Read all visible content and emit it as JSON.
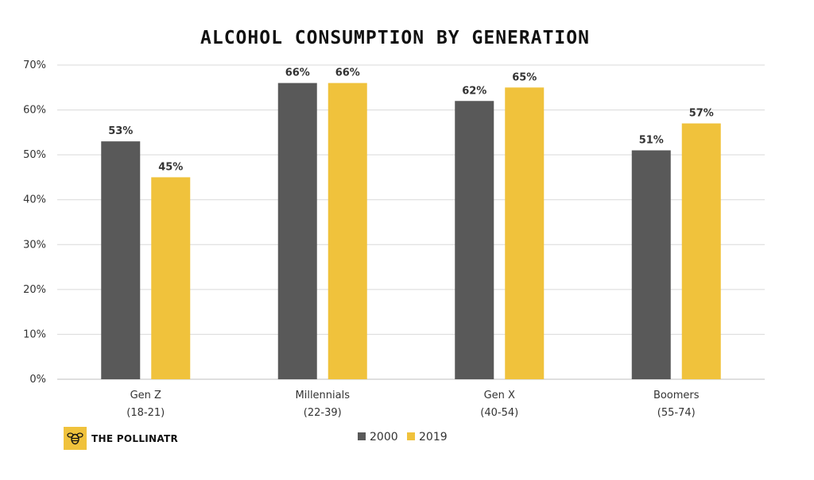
{
  "chart_data": {
    "type": "bar",
    "title": "ALCOHOL CONSUMPTION BY GENERATION",
    "categories": [
      {
        "name": "Gen Z",
        "range": "(18-21)"
      },
      {
        "name": "Millennials",
        "range": "(22-39)"
      },
      {
        "name": "Gen X",
        "range": "(40-54)"
      },
      {
        "name": "Boomers",
        "range": "(55-74)"
      }
    ],
    "series": [
      {
        "name": "2000",
        "color": "#595959",
        "values": [
          53,
          66,
          62,
          51
        ],
        "labels": [
          "53%",
          "66%",
          "62%",
          "51%"
        ]
      },
      {
        "name": "2019",
        "color": "#F0C23C",
        "values": [
          45,
          66,
          65,
          57
        ],
        "labels": [
          "45%",
          "66%",
          "65%",
          "57%"
        ]
      }
    ],
    "ylim": [
      0,
      70
    ],
    "yticks": [
      "0%",
      "10%",
      "20%",
      "30%",
      "40%",
      "50%",
      "60%",
      "70%"
    ],
    "grid": true,
    "legend": "bottom-center"
  },
  "brand": {
    "name": "THE POLLINATR",
    "logo_color": "#F0C23C",
    "icon": "bee-icon"
  }
}
